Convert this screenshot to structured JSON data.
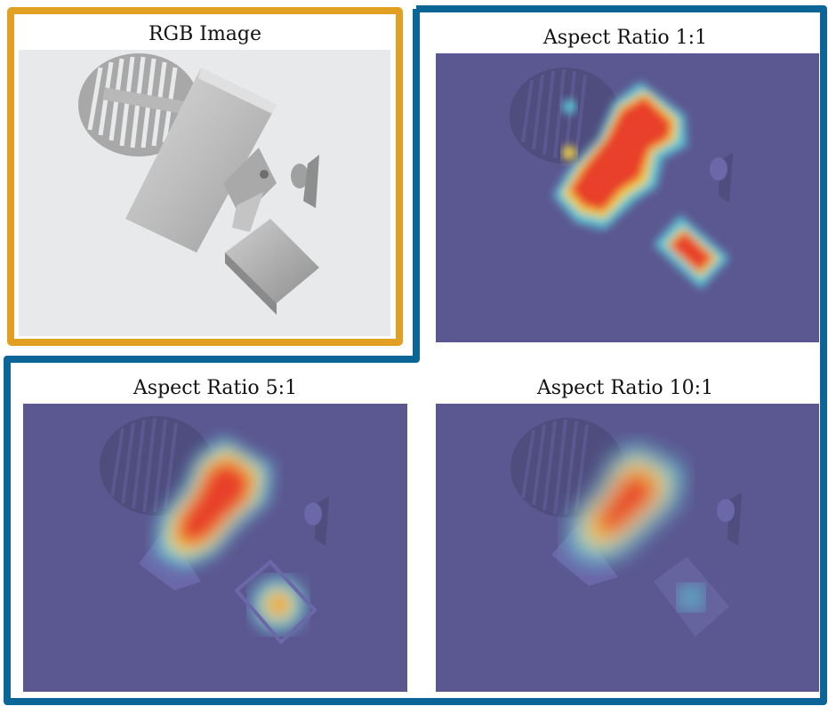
{
  "colors": {
    "rgb_frame": "#e1a021",
    "heat_frame": "#0b6596",
    "heatmap_bg": "#5b5790",
    "heat_red": "#e8412c",
    "heat_yellow": "#f2d544",
    "heat_cyan": "#5cc6d6",
    "rgb_bg": "#e8e9ea"
  },
  "panels": {
    "rgb": {
      "title": "RGB Image"
    },
    "ratio_1_1": {
      "title": "Aspect Ratio 1:1"
    },
    "ratio_5_1": {
      "title": "Aspect Ratio 5:1"
    },
    "ratio_10_1": {
      "title": "Aspect Ratio 10:1"
    }
  }
}
